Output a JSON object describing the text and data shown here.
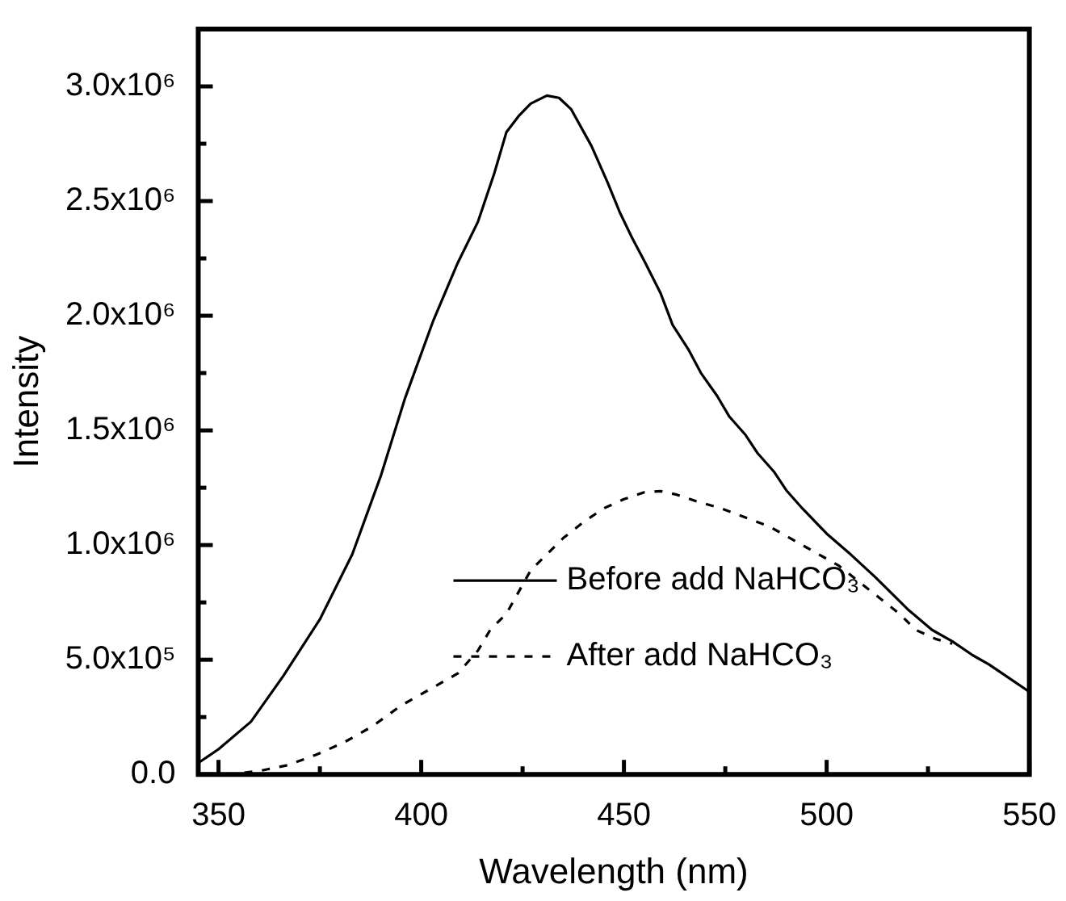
{
  "chart_data": {
    "type": "line",
    "xlabel": "Wavelength (nm)",
    "ylabel": "Intensity",
    "xlim": [
      345,
      550
    ],
    "xticks": [
      350,
      {
        "value": 375,
        "label": null
      },
      400,
      {
        "value": 425,
        "label": null
      },
      450,
      {
        "value": 475,
        "label": null
      },
      500,
      {
        "value": 525,
        "label": null
      },
      550
    ],
    "ylim": [
      0,
      3250000
    ],
    "yticks": [
      {
        "value": 0,
        "label": "0.0"
      },
      {
        "value": 250000,
        "label": null
      },
      {
        "value": 500000,
        "label": "5.0x10⁵"
      },
      {
        "value": 750000,
        "label": null
      },
      {
        "value": 1000000,
        "label": "1.0x10⁶"
      },
      {
        "value": 1250000,
        "label": null
      },
      {
        "value": 1500000,
        "label": "1.5x10⁶"
      },
      {
        "value": 1750000,
        "label": null
      },
      {
        "value": 2000000,
        "label": "2.0x10⁶"
      },
      {
        "value": 2250000,
        "label": null
      },
      {
        "value": 2500000,
        "label": "2.5x10⁶"
      },
      {
        "value": 2750000,
        "label": null
      },
      {
        "value": 3000000,
        "label": "3.0x10⁶"
      }
    ],
    "grid": false,
    "legend": "bottom right",
    "marker": "none",
    "series": [
      {
        "name": "Before add NaHCO₃",
        "color": "#000000",
        "line_style": "solid",
        "x": [
          345,
          350,
          358,
          366,
          375,
          383,
          390,
          396,
          403,
          409,
          414,
          418,
          421,
          424,
          427,
          431,
          434,
          437,
          442,
          446,
          449,
          452,
          455,
          459,
          462,
          466,
          469,
          473,
          476,
          480,
          483,
          487,
          490,
          494,
          500,
          506,
          512,
          520,
          526,
          531,
          536,
          540,
          545,
          550
        ],
        "values": [
          50000,
          110000,
          230000,
          430000,
          676000,
          960000,
          1300000,
          1640000,
          1980000,
          2230000,
          2410000,
          2620000,
          2800000,
          2870000,
          2925000,
          2960000,
          2950000,
          2900000,
          2740000,
          2580000,
          2450000,
          2340000,
          2240000,
          2100000,
          1960000,
          1850000,
          1750000,
          1650000,
          1560000,
          1480000,
          1400000,
          1320000,
          1240000,
          1160000,
          1050000,
          958000,
          860000,
          720000,
          630000,
          580000,
          520000,
          480000,
          420000,
          360000
        ]
      },
      {
        "name": "After add NaHCO₃",
        "color": "#000000",
        "line_style": "dashed",
        "x": [
          352,
          355,
          360,
          367,
          374,
          381,
          388,
          395,
          402,
          409,
          414,
          417,
          421,
          427,
          431,
          435,
          440,
          445,
          450,
          455,
          459,
          463,
          468,
          474,
          480,
          486,
          491,
          497,
          503,
          508,
          513,
          518,
          522,
          527,
          531
        ],
        "values": [
          0,
          5000,
          15000,
          40000,
          85000,
          140000,
          210000,
          300000,
          370000,
          440000,
          540000,
          630000,
          700000,
          890000,
          960000,
          1030000,
          1100000,
          1160000,
          1200000,
          1230000,
          1235000,
          1220000,
          1190000,
          1160000,
          1120000,
          1080000,
          1030000,
          970000,
          910000,
          840000,
          770000,
          700000,
          630000,
          590000,
          570000
        ]
      }
    ]
  }
}
